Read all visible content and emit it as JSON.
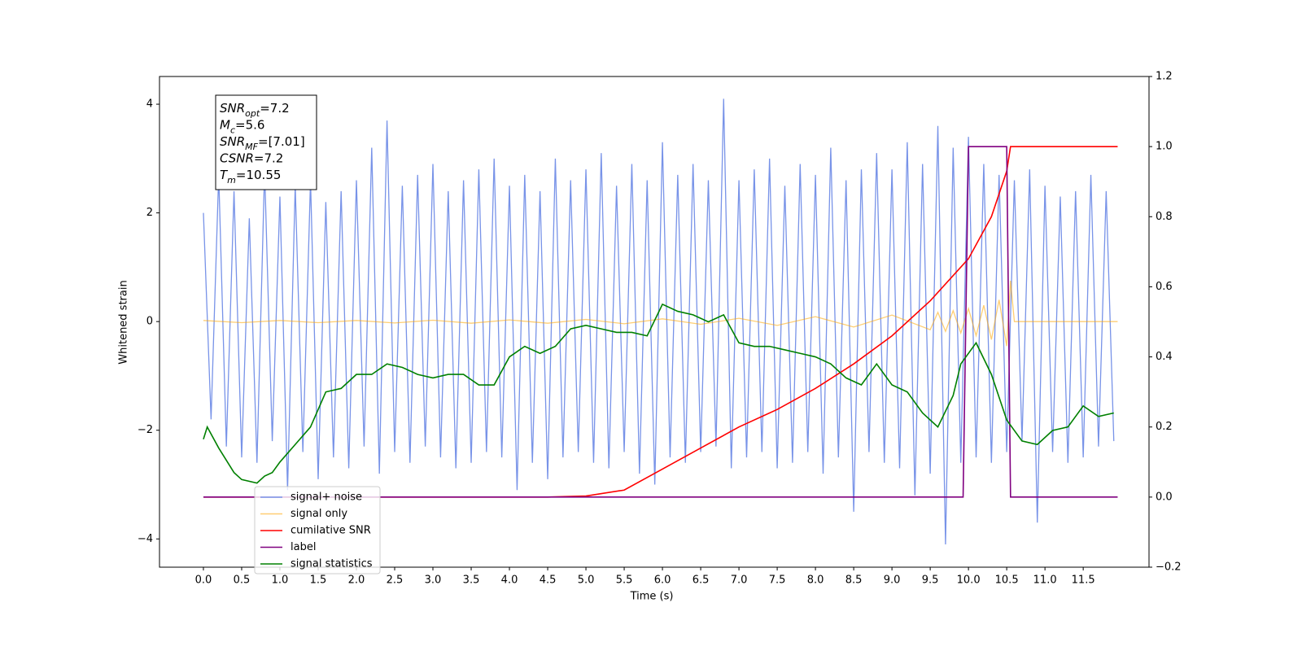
{
  "chart_data": {
    "type": "line",
    "xlabel": "Time (s)",
    "ylabel": "Whitened strain",
    "xlim": [
      -0.574,
      12.36
    ],
    "ylim": [
      -4.52,
      4.51
    ],
    "y2lim": [
      -0.2,
      1.2
    ],
    "xticks": [
      {
        "value": 0,
        "label": "0.0"
      },
      0.5,
      {
        "value": 1,
        "label": "1.0"
      },
      1.5,
      {
        "value": 2,
        "label": "2.0"
      },
      2.5,
      {
        "value": 3,
        "label": "3.0"
      },
      3.5,
      {
        "value": 4,
        "label": "4.0"
      },
      4.5,
      {
        "value": 5,
        "label": "5.0"
      },
      5.5,
      {
        "value": 6,
        "label": "6.0"
      },
      6.5,
      {
        "value": 7,
        "label": "7.0"
      },
      7.5,
      {
        "value": 8,
        "label": "8.0"
      },
      8.5,
      {
        "value": 9,
        "label": "9.0"
      },
      9.5,
      {
        "value": 10,
        "label": "10.0"
      },
      10.5,
      {
        "value": 11,
        "label": "11.0"
      },
      11.5
    ],
    "yticks": [
      {
        "value": -4,
        "label": "−4"
      },
      {
        "value": -2,
        "label": "−2"
      },
      0,
      2,
      4
    ],
    "y2ticks": [
      {
        "value": -0.2,
        "label": "−0.2"
      },
      {
        "value": 0,
        "label": "0.0"
      },
      0.2,
      0.4,
      0.6,
      0.8,
      {
        "value": 1,
        "label": "1.0"
      },
      1.2
    ],
    "legend": true,
    "annotations": [
      {
        "symbol": "SNR",
        "subscript": "opt",
        "text": "=7.2"
      },
      {
        "symbol": "M",
        "subscript": "c",
        "text": "=5.6"
      },
      {
        "symbol": "SNR",
        "subscript": "MF",
        "text": "=[7.01]"
      },
      {
        "symbol": "CSNR",
        "subscript": "",
        "text": "=7.2"
      },
      {
        "symbol": "T",
        "subscript": "m",
        "text": "=10.55"
      }
    ],
    "series": [
      {
        "name": "signal+ noise",
        "color": "#7893e8",
        "x": [
          0,
          0.1,
          0.2,
          0.3,
          0.4,
          0.5,
          0.6,
          0.7,
          0.8,
          0.9,
          1,
          1.1,
          1.2,
          1.3,
          1.4,
          1.5,
          1.6,
          1.7,
          1.8,
          1.9,
          2,
          2.1,
          2.2,
          2.3,
          2.4,
          2.5,
          2.6,
          2.7,
          2.8,
          2.9,
          3,
          3.1,
          3.2,
          3.3,
          3.4,
          3.5,
          3.6,
          3.7,
          3.8,
          3.9,
          4,
          4.1,
          4.2,
          4.3,
          4.4,
          4.5,
          4.6,
          4.7,
          4.8,
          4.9,
          5,
          5.1,
          5.2,
          5.3,
          5.4,
          5.5,
          5.6,
          5.7,
          5.8,
          5.9,
          6,
          6.1,
          6.2,
          6.3,
          6.4,
          6.5,
          6.6,
          6.7,
          6.8,
          6.9,
          7,
          7.1,
          7.2,
          7.3,
          7.4,
          7.5,
          7.6,
          7.7,
          7.8,
          7.9,
          8,
          8.1,
          8.2,
          8.3,
          8.4,
          8.5,
          8.6,
          8.7,
          8.8,
          8.9,
          9,
          9.1,
          9.2,
          9.3,
          9.4,
          9.5,
          9.6,
          9.7,
          9.8,
          9.9,
          10,
          10.1,
          10.2,
          10.3,
          10.4,
          10.5,
          10.6,
          10.7,
          10.8,
          10.9,
          11,
          11.1,
          11.2,
          11.3,
          11.4,
          11.5,
          11.6,
          11.7,
          11.8,
          11.9
        ],
        "values": [
          2.0,
          -1.8,
          2.7,
          -2.3,
          2.4,
          -2.5,
          1.9,
          -2.6,
          2.8,
          -2.2,
          2.3,
          -3.1,
          2.5,
          -2.4,
          2.6,
          -2.9,
          2.2,
          -2.5,
          2.4,
          -2.7,
          2.6,
          -2.3,
          3.2,
          -2.8,
          3.7,
          -2.4,
          2.5,
          -2.6,
          2.7,
          -2.3,
          2.9,
          -2.5,
          2.4,
          -2.7,
          2.6,
          -2.6,
          2.8,
          -2.4,
          3.0,
          -2.5,
          2.5,
          -3.1,
          2.7,
          -2.6,
          2.4,
          -2.9,
          3.0,
          -2.5,
          2.6,
          -2.4,
          2.8,
          -2.6,
          3.1,
          -2.7,
          2.5,
          -2.4,
          2.9,
          -2.8,
          2.6,
          -3.0,
          3.3,
          -2.5,
          2.7,
          -2.6,
          2.9,
          -2.4,
          2.6,
          -2.3,
          4.1,
          -2.7,
          2.6,
          -2.5,
          2.8,
          -2.4,
          3.0,
          -2.7,
          2.5,
          -2.6,
          2.9,
          -2.4,
          2.7,
          -2.8,
          3.2,
          -2.5,
          2.6,
          -3.5,
          2.8,
          -2.4,
          3.1,
          -2.6,
          2.8,
          -2.7,
          3.3,
          -3.2,
          2.9,
          -2.8,
          3.6,
          -4.1,
          3.2,
          -2.6,
          3.4,
          -2.5,
          2.9,
          -2.6,
          2.7,
          -2.4,
          2.6,
          -2.2,
          2.8,
          -3.7,
          2.5,
          -2.4,
          2.3,
          -2.6,
          2.4,
          -2.5,
          2.7,
          -2.3,
          2.4,
          -2.2
        ]
      },
      {
        "name": "signal only",
        "color": "#ffa500",
        "x": [
          0,
          0.5,
          1,
          1.5,
          2,
          2.5,
          3,
          3.5,
          4,
          4.5,
          5,
          5.5,
          6,
          6.5,
          7,
          7.5,
          8,
          8.5,
          9,
          9.5,
          9.6,
          9.7,
          9.8,
          9.9,
          10,
          10.1,
          10.2,
          10.3,
          10.4,
          10.5,
          10.55,
          10.6,
          11.95
        ],
        "values": [
          0.02,
          -0.02,
          0.02,
          -0.02,
          0.02,
          -0.025,
          0.025,
          -0.03,
          0.03,
          -0.03,
          0.04,
          -0.04,
          0.05,
          -0.05,
          0.06,
          -0.07,
          0.09,
          -0.1,
          0.12,
          -0.15,
          0.17,
          -0.18,
          0.2,
          -0.21,
          0.24,
          -0.26,
          0.3,
          -0.33,
          0.4,
          -0.45,
          0.75,
          0,
          0
        ]
      },
      {
        "name": "cumilative SNR",
        "color": "#ff0000",
        "axis": "y2",
        "x": [
          0,
          4.5,
          5,
          5.5,
          6,
          6.5,
          7,
          7.5,
          8,
          8.5,
          9,
          9.5,
          10,
          10.3,
          10.5,
          10.55,
          11.95
        ],
        "values": [
          0,
          0,
          0.003,
          0.02,
          0.08,
          0.14,
          0.2,
          0.25,
          0.31,
          0.38,
          0.46,
          0.56,
          0.68,
          0.8,
          0.93,
          1.0,
          1.0
        ]
      },
      {
        "name": "label",
        "color": "#800080",
        "axis": "y2",
        "x": [
          0,
          9.93,
          10.0,
          10.5,
          10.55,
          11.95
        ],
        "values": [
          0,
          0,
          1,
          1,
          0,
          0
        ]
      },
      {
        "name": "signal statistics",
        "color": "#008000",
        "axis": "y2",
        "x": [
          0,
          0.05,
          0.2,
          0.4,
          0.5,
          0.7,
          0.8,
          0.9,
          1.0,
          1.2,
          1.4,
          1.6,
          1.8,
          2.0,
          2.2,
          2.4,
          2.6,
          2.8,
          3.0,
          3.2,
          3.4,
          3.6,
          3.8,
          4.0,
          4.2,
          4.4,
          4.6,
          4.8,
          5.0,
          5.2,
          5.4,
          5.6,
          5.8,
          6.0,
          6.2,
          6.4,
          6.6,
          6.8,
          7.0,
          7.2,
          7.4,
          7.6,
          7.8,
          8.0,
          8.2,
          8.4,
          8.6,
          8.8,
          9.0,
          9.2,
          9.4,
          9.6,
          9.8,
          9.9,
          10.1,
          10.3,
          10.5,
          10.7,
          10.9,
          11.1,
          11.3,
          11.5,
          11.7,
          11.9
        ],
        "values": [
          0.165,
          0.2,
          0.14,
          0.07,
          0.05,
          0.04,
          0.06,
          0.07,
          0.1,
          0.15,
          0.2,
          0.3,
          0.31,
          0.35,
          0.35,
          0.38,
          0.37,
          0.35,
          0.34,
          0.35,
          0.35,
          0.32,
          0.32,
          0.4,
          0.43,
          0.41,
          0.43,
          0.48,
          0.49,
          0.48,
          0.47,
          0.47,
          0.46,
          0.55,
          0.53,
          0.52,
          0.5,
          0.52,
          0.44,
          0.43,
          0.43,
          0.42,
          0.41,
          0.4,
          0.38,
          0.34,
          0.32,
          0.38,
          0.32,
          0.3,
          0.24,
          0.2,
          0.29,
          0.38,
          0.44,
          0.35,
          0.22,
          0.16,
          0.15,
          0.19,
          0.2,
          0.26,
          0.23,
          0.24
        ]
      }
    ]
  }
}
